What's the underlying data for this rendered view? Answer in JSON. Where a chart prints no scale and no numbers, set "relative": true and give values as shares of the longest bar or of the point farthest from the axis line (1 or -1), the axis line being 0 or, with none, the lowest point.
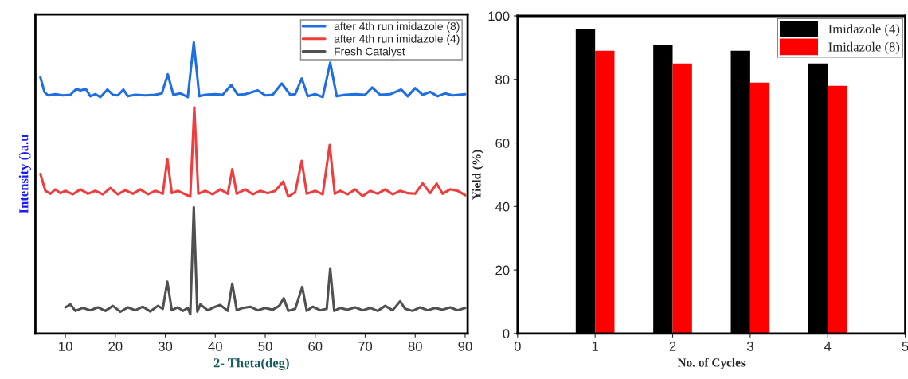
{
  "chart_data": [
    {
      "type": "line",
      "relative": true,
      "xlabel": "2- Theta(deg)",
      "ylabel": "Intensity ()a.u",
      "xlim": [
        4,
        90.5
      ],
      "xticks": [
        10,
        20,
        30,
        40,
        50,
        60,
        70,
        80,
        90
      ],
      "tick_labels": "x",
      "legend": "top right",
      "series": [
        {
          "name": "after 4th run imidazole (8)",
          "color": "#1f6fe0",
          "x": [
            5,
            5.8,
            6.5,
            8,
            9.5,
            11,
            12.2,
            13,
            14.1,
            15,
            16,
            17,
            18.4,
            19.5,
            20.5,
            21.6,
            22.5,
            24,
            26,
            28,
            29.3,
            30.5,
            31.6,
            33,
            34.5,
            35.7,
            36.8,
            38,
            40,
            41.5,
            43.2,
            44.5,
            46,
            48.5,
            50,
            51.5,
            53.3,
            55,
            56,
            57.3,
            58.5,
            60,
            61.5,
            63,
            64.3,
            66,
            68,
            70,
            71.4,
            73,
            75,
            77.2,
            78.5,
            80,
            81.5,
            83,
            84.5,
            86,
            87.5,
            90
          ],
          "values": [
            0.88,
            0.83,
            0.818,
            0.822,
            0.818,
            0.82,
            0.84,
            0.835,
            0.84,
            0.815,
            0.822,
            0.812,
            0.838,
            0.82,
            0.818,
            0.838,
            0.815,
            0.82,
            0.818,
            0.82,
            0.825,
            0.89,
            0.82,
            0.825,
            0.812,
            1.0,
            0.815,
            0.82,
            0.822,
            0.82,
            0.854,
            0.82,
            0.822,
            0.835,
            0.818,
            0.82,
            0.859,
            0.82,
            0.822,
            0.876,
            0.815,
            0.822,
            0.812,
            0.93,
            0.815,
            0.82,
            0.822,
            0.82,
            0.845,
            0.82,
            0.822,
            0.838,
            0.815,
            0.843,
            0.82,
            0.83,
            0.815,
            0.825,
            0.818,
            0.822
          ]
        },
        {
          "name": "after 4th run imidazole (4)",
          "color": "#f03c3c",
          "x": [
            5,
            6,
            7,
            8,
            9,
            10,
            11.5,
            13,
            14.5,
            16,
            17.5,
            19,
            20.5,
            22,
            23.5,
            25,
            26.5,
            28,
            29.5,
            30.4,
            31.3,
            32.5,
            34,
            35,
            35.8,
            36.6,
            38,
            39.5,
            41,
            42.5,
            43.4,
            44.3,
            46,
            47.5,
            49,
            50.5,
            52,
            53.6,
            54.6,
            56,
            57.3,
            58.3,
            60,
            61.5,
            62.9,
            63.9,
            65,
            66.5,
            68,
            69.5,
            71,
            72.5,
            74,
            75.5,
            77,
            78.5,
            80,
            81.5,
            83,
            84.3,
            85.5,
            87,
            88.5,
            90
          ],
          "values": [
            0.548,
            0.49,
            0.48,
            0.495,
            0.482,
            0.49,
            0.478,
            0.495,
            0.48,
            0.49,
            0.478,
            0.5,
            0.478,
            0.492,
            0.48,
            0.495,
            0.478,
            0.49,
            0.48,
            0.6,
            0.482,
            0.49,
            0.478,
            0.47,
            0.777,
            0.48,
            0.49,
            0.478,
            0.495,
            0.48,
            0.564,
            0.48,
            0.495,
            0.478,
            0.49,
            0.482,
            0.49,
            0.522,
            0.47,
            0.485,
            0.593,
            0.48,
            0.49,
            0.478,
            0.648,
            0.48,
            0.49,
            0.478,
            0.495,
            0.472,
            0.49,
            0.48,
            0.495,
            0.478,
            0.49,
            0.482,
            0.48,
            0.516,
            0.482,
            0.515,
            0.48,
            0.495,
            0.49,
            0.475
          ]
        },
        {
          "name": "Fresh Catalyst",
          "color": "#505050",
          "x": [
            10,
            11,
            12,
            13.5,
            15,
            16.5,
            18,
            19.5,
            21,
            22.5,
            24,
            25.5,
            27,
            28.5,
            29.5,
            30.4,
            31.3,
            32.5,
            33.5,
            34.5,
            35,
            35.7,
            36.4,
            37,
            38.5,
            40,
            41,
            42.5,
            43.4,
            44.3,
            45.5,
            47,
            48.5,
            50,
            51.5,
            52.8,
            53.7,
            54.6,
            56,
            57.4,
            58.3,
            59.5,
            61,
            62.3,
            63,
            63.8,
            65,
            66.5,
            68,
            69.5,
            71,
            72.5,
            74,
            75.5,
            77,
            78,
            79.5,
            81,
            82.5,
            84,
            85.5,
            87,
            88.5,
            90
          ],
          "values": [
            0.09,
            0.1,
            0.078,
            0.088,
            0.08,
            0.09,
            0.078,
            0.095,
            0.075,
            0.09,
            0.08,
            0.092,
            0.076,
            0.095,
            0.085,
            0.178,
            0.08,
            0.09,
            0.078,
            0.088,
            0.066,
            0.434,
            0.075,
            0.1,
            0.08,
            0.092,
            0.098,
            0.078,
            0.171,
            0.08,
            0.088,
            0.092,
            0.08,
            0.088,
            0.082,
            0.095,
            0.121,
            0.078,
            0.085,
            0.16,
            0.078,
            0.092,
            0.08,
            0.085,
            0.224,
            0.078,
            0.088,
            0.082,
            0.09,
            0.08,
            0.088,
            0.078,
            0.095,
            0.08,
            0.111,
            0.085,
            0.078,
            0.09,
            0.08,
            0.088,
            0.082,
            0.09,
            0.08,
            0.088
          ]
        }
      ]
    },
    {
      "type": "bar",
      "xlabel": "No. of Cycles",
      "ylabel": "Yield (%)",
      "x": [
        1,
        2,
        3,
        4
      ],
      "xlim": [
        0,
        5
      ],
      "xticks": [
        0,
        1,
        2,
        3,
        4,
        5
      ],
      "ylim": [
        0,
        100
      ],
      "yticks": [
        0,
        20,
        40,
        60,
        80,
        100
      ],
      "legend": "top right",
      "series": [
        {
          "name": "Imidazole (4)",
          "color": "#000000",
          "values": [
            96,
            91,
            89,
            85
          ]
        },
        {
          "name": "Imidazole (8)",
          "color": "#ff0000",
          "values": [
            89,
            85,
            79,
            78
          ]
        }
      ]
    }
  ]
}
